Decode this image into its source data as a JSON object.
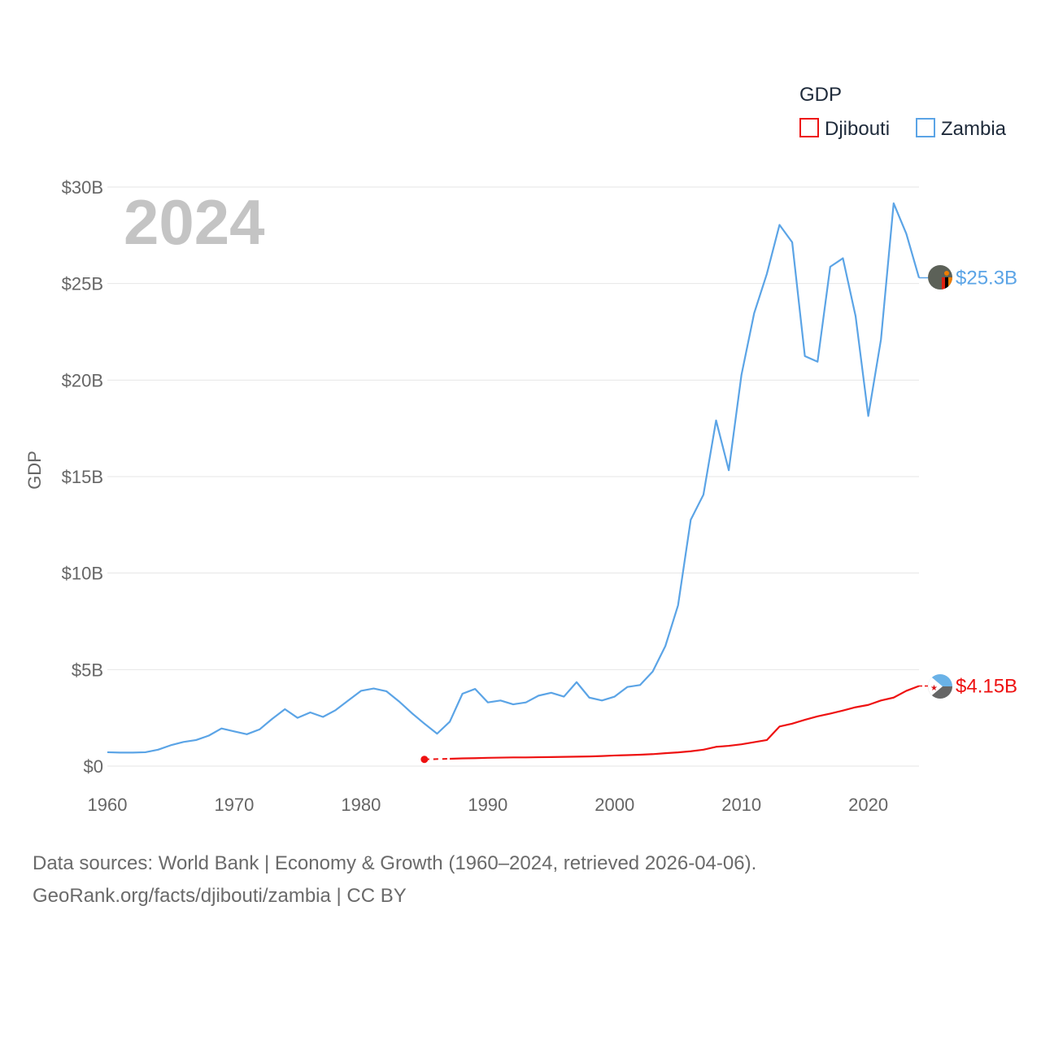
{
  "chart_data": {
    "type": "line",
    "year_watermark": "2024",
    "ylabel": "GDP",
    "legend_title": "GDP",
    "xlim": [
      1960,
      2024
    ],
    "ylim": [
      0,
      30
    ],
    "x_ticks": [
      1960,
      1970,
      1980,
      1990,
      2000,
      2010,
      2020
    ],
    "y_ticks": [
      {
        "value": 0,
        "label": "$0"
      },
      {
        "value": 5,
        "label": "$5B"
      },
      {
        "value": 10,
        "label": "$10B"
      },
      {
        "value": 15,
        "label": "$15B"
      },
      {
        "value": 20,
        "label": "$20B"
      },
      {
        "value": 25,
        "label": "$25B"
      },
      {
        "value": 30,
        "label": "$30B"
      }
    ],
    "series": [
      {
        "name": "Djibouti",
        "color": "#ee1111",
        "end_label": "$4.15B",
        "gap_dashed": true,
        "x": [
          1985,
          1987,
          1988,
          1989,
          1990,
          1991,
          1992,
          1993,
          1994,
          1995,
          1996,
          1997,
          1998,
          1999,
          2000,
          2001,
          2002,
          2003,
          2004,
          2005,
          2006,
          2007,
          2008,
          2009,
          2010,
          2011,
          2012,
          2013,
          2014,
          2015,
          2016,
          2017,
          2018,
          2019,
          2020,
          2021,
          2022,
          2023,
          2024
        ],
        "values": [
          0.35,
          0.38,
          0.4,
          0.41,
          0.43,
          0.44,
          0.45,
          0.45,
          0.46,
          0.47,
          0.48,
          0.49,
          0.5,
          0.52,
          0.55,
          0.57,
          0.59,
          0.62,
          0.67,
          0.71,
          0.77,
          0.85,
          1.0,
          1.05,
          1.13,
          1.24,
          1.35,
          2.05,
          2.2,
          2.4,
          2.58,
          2.72,
          2.88,
          3.05,
          3.17,
          3.4,
          3.55,
          3.9,
          4.15
        ]
      },
      {
        "name": "Zambia",
        "color": "#5ba4e6",
        "end_label": "$25.3B",
        "x": [
          1960,
          1961,
          1962,
          1963,
          1964,
          1965,
          1966,
          1967,
          1968,
          1969,
          1970,
          1971,
          1972,
          1973,
          1974,
          1975,
          1976,
          1977,
          1978,
          1979,
          1980,
          1981,
          1982,
          1983,
          1984,
          1985,
          1986,
          1987,
          1988,
          1989,
          1990,
          1991,
          1992,
          1993,
          1994,
          1995,
          1996,
          1997,
          1998,
          1999,
          2000,
          2001,
          2002,
          2003,
          2004,
          2005,
          2006,
          2007,
          2008,
          2009,
          2010,
          2011,
          2012,
          2013,
          2014,
          2015,
          2016,
          2017,
          2018,
          2019,
          2020,
          2021,
          2022,
          2023,
          2024
        ],
        "values": [
          0.72,
          0.7,
          0.7,
          0.72,
          0.85,
          1.08,
          1.25,
          1.35,
          1.58,
          1.95,
          1.8,
          1.65,
          1.9,
          2.45,
          2.95,
          2.5,
          2.78,
          2.55,
          2.9,
          3.4,
          3.9,
          4.02,
          3.88,
          3.35,
          2.75,
          2.2,
          1.68,
          2.3,
          3.75,
          4.0,
          3.3,
          3.4,
          3.2,
          3.3,
          3.65,
          3.8,
          3.6,
          4.35,
          3.55,
          3.4,
          3.6,
          4.1,
          4.2,
          4.9,
          6.22,
          8.33,
          12.76,
          14.06,
          17.91,
          15.33,
          20.27,
          23.46,
          25.5,
          28.04,
          27.14,
          21.24,
          20.95,
          25.87,
          26.31,
          23.31,
          18.14,
          22.1,
          29.16,
          27.58,
          25.3
        ]
      }
    ]
  },
  "footer": {
    "line1": "Data sources: World Bank | Economy & Growth (1960–2024, retrieved 2026-04-06).",
    "line2": "GeoRank.org/facts/djibouti/zambia | CC BY"
  },
  "colors": {
    "djibouti": "#ee1111",
    "zambia": "#5ba4e6"
  },
  "flags": {
    "djibouti": "djibouti-flag-icon",
    "zambia": "zambia-flag-icon"
  }
}
